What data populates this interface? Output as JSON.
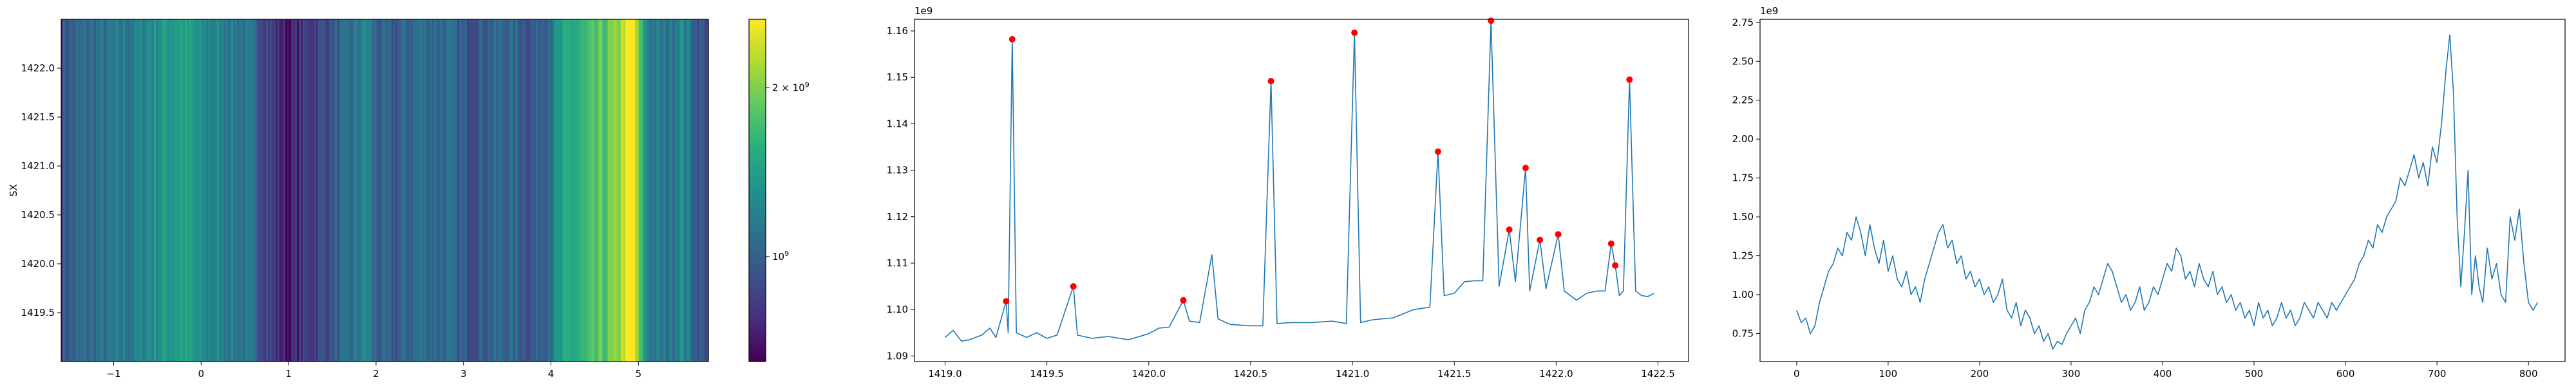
{
  "chart_data": [
    {
      "type": "heatmap",
      "title": "",
      "xlabel": "",
      "ylabel": "SX",
      "xlim": [
        -1.6,
        5.8
      ],
      "ylim": [
        1419.0,
        1422.5
      ],
      "x_ticks": [
        -1,
        0,
        1,
        2,
        3,
        4,
        5
      ],
      "x_tick_labels": [
        "−1",
        "0",
        "1",
        "2",
        "3",
        "4",
        "5"
      ],
      "y_ticks": [
        1419.5,
        1420.0,
        1420.5,
        1421.0,
        1421.5,
        1422.0
      ],
      "y_tick_labels": [
        "1419.5",
        "1420.0",
        "1420.5",
        "1421.0",
        "1421.5",
        "1422.0"
      ],
      "colormap": "viridis",
      "color_scale": "log",
      "colorbar": {
        "vmin": 650000000,
        "vmax": 2650000000,
        "ticks": [
          {
            "value": 1000000000,
            "base": "10",
            "exp": "9",
            "mantissa": ""
          },
          {
            "value": 2000000000,
            "base": "10",
            "exp": "9",
            "mantissa": "2 × "
          }
        ]
      },
      "column_profile": [
        [
          -1.6,
          0.95
        ],
        [
          -1.3,
          1.05
        ],
        [
          -1.0,
          1.1
        ],
        [
          -0.7,
          1.2
        ],
        [
          -0.4,
          1.4
        ],
        [
          -0.2,
          1.45
        ],
        [
          0.0,
          1.25
        ],
        [
          0.3,
          1.2
        ],
        [
          0.6,
          1.05
        ],
        [
          0.85,
          0.8
        ],
        [
          1.0,
          0.7
        ],
        [
          1.15,
          0.8
        ],
        [
          1.4,
          0.9
        ],
        [
          1.7,
          1.05
        ],
        [
          1.9,
          1.25
        ],
        [
          2.0,
          1.0
        ],
        [
          2.2,
          0.95
        ],
        [
          2.5,
          1.1
        ],
        [
          2.8,
          1.05
        ],
        [
          3.0,
          0.95
        ],
        [
          3.2,
          1.0
        ],
        [
          3.5,
          1.05
        ],
        [
          3.8,
          0.95
        ],
        [
          4.0,
          1.15
        ],
        [
          4.2,
          1.5
        ],
        [
          4.4,
          1.6
        ],
        [
          4.6,
          1.8
        ],
        [
          4.75,
          1.95
        ],
        [
          4.85,
          2.5
        ],
        [
          4.95,
          2.6
        ],
        [
          5.0,
          1.8
        ],
        [
          5.1,
          1.2
        ],
        [
          5.3,
          1.1
        ],
        [
          5.5,
          1.3
        ],
        [
          5.65,
          1.0
        ],
        [
          5.8,
          0.9
        ]
      ]
    },
    {
      "type": "line",
      "title": "",
      "xlabel": "",
      "ylabel": "",
      "offset_text": "1e9",
      "xlim": [
        1418.85,
        1422.65
      ],
      "ylim": [
        1.0888,
        1.1625
      ],
      "x_ticks": [
        1419.0,
        1419.5,
        1420.0,
        1420.5,
        1421.0,
        1421.5,
        1422.0,
        1422.5
      ],
      "x_tick_labels": [
        "1419.0",
        "1419.5",
        "1420.0",
        "1420.5",
        "1421.0",
        "1421.5",
        "1422.0",
        "1422.5"
      ],
      "y_ticks": [
        1.09,
        1.1,
        1.11,
        1.12,
        1.13,
        1.14,
        1.15,
        1.16
      ],
      "y_tick_labels": [
        "1.09",
        "1.10",
        "1.11",
        "1.12",
        "1.13",
        "1.14",
        "1.15",
        "1.16"
      ],
      "line_color": "#1f77b4",
      "marker_color": "#ff0000",
      "series_knots": [
        [
          1419.0,
          1.094
        ],
        [
          1419.04,
          1.0955
        ],
        [
          1419.08,
          1.0932
        ],
        [
          1419.12,
          1.0935
        ],
        [
          1419.18,
          1.0945
        ],
        [
          1419.22,
          1.096
        ],
        [
          1419.25,
          1.094
        ],
        [
          1419.3,
          1.1018
        ],
        [
          1419.31,
          1.095
        ],
        [
          1419.33,
          1.1582
        ],
        [
          1419.35,
          1.095
        ],
        [
          1419.4,
          1.094
        ],
        [
          1419.45,
          1.095
        ],
        [
          1419.5,
          1.0938
        ],
        [
          1419.55,
          1.0945
        ],
        [
          1419.63,
          1.105
        ],
        [
          1419.65,
          1.0945
        ],
        [
          1419.72,
          1.0938
        ],
        [
          1419.8,
          1.0942
        ],
        [
          1419.9,
          1.0935
        ],
        [
          1420.0,
          1.0948
        ],
        [
          1420.05,
          1.096
        ],
        [
          1420.1,
          1.0962
        ],
        [
          1420.17,
          1.102
        ],
        [
          1420.2,
          1.0975
        ],
        [
          1420.25,
          1.0972
        ],
        [
          1420.31,
          1.1118
        ],
        [
          1420.34,
          1.098
        ],
        [
          1420.4,
          1.0968
        ],
        [
          1420.5,
          1.0965
        ],
        [
          1420.56,
          1.0965
        ],
        [
          1420.6,
          1.1492
        ],
        [
          1420.63,
          1.097
        ],
        [
          1420.7,
          1.0972
        ],
        [
          1420.8,
          1.0972
        ],
        [
          1420.9,
          1.0975
        ],
        [
          1420.97,
          1.097
        ],
        [
          1421.01,
          1.1596
        ],
        [
          1421.04,
          1.0972
        ],
        [
          1421.1,
          1.0978
        ],
        [
          1421.2,
          1.0982
        ],
        [
          1421.3,
          1.1
        ],
        [
          1421.38,
          1.1005
        ],
        [
          1421.42,
          1.134
        ],
        [
          1421.45,
          1.103
        ],
        [
          1421.5,
          1.1035
        ],
        [
          1421.55,
          1.106
        ],
        [
          1421.6,
          1.1062
        ],
        [
          1421.64,
          1.1062
        ],
        [
          1421.68,
          1.1622
        ],
        [
          1421.72,
          1.105
        ],
        [
          1421.77,
          1.1172
        ],
        [
          1421.8,
          1.106
        ],
        [
          1421.85,
          1.1305
        ],
        [
          1421.87,
          1.104
        ],
        [
          1421.92,
          1.115
        ],
        [
          1421.95,
          1.1045
        ],
        [
          1422.01,
          1.1162
        ],
        [
          1422.04,
          1.104
        ],
        [
          1422.1,
          1.102
        ],
        [
          1422.15,
          1.1035
        ],
        [
          1422.2,
          1.104
        ],
        [
          1422.24,
          1.104
        ],
        [
          1422.27,
          1.1142
        ],
        [
          1422.29,
          1.1095
        ],
        [
          1422.31,
          1.103
        ],
        [
          1422.33,
          1.104
        ],
        [
          1422.36,
          1.1495
        ],
        [
          1422.39,
          1.104
        ],
        [
          1422.42,
          1.103
        ],
        [
          1422.45,
          1.1028
        ],
        [
          1422.48,
          1.1035
        ]
      ],
      "peaks": [
        [
          1419.3,
          1.1018
        ],
        [
          1419.33,
          1.1582
        ],
        [
          1419.63,
          1.105
        ],
        [
          1420.17,
          1.102
        ],
        [
          1420.6,
          1.1492
        ],
        [
          1421.01,
          1.1596
        ],
        [
          1421.42,
          1.134
        ],
        [
          1421.68,
          1.1622
        ],
        [
          1421.77,
          1.1172
        ],
        [
          1421.85,
          1.1305
        ],
        [
          1421.92,
          1.115
        ],
        [
          1422.01,
          1.1162
        ],
        [
          1422.27,
          1.1142
        ],
        [
          1422.29,
          1.1095
        ],
        [
          1422.36,
          1.1495
        ]
      ]
    },
    {
      "type": "line",
      "title": "",
      "xlabel": "",
      "ylabel": "",
      "offset_text": "1e9",
      "xlim": [
        -40,
        840
      ],
      "ylim": [
        0.57,
        2.77
      ],
      "x_ticks": [
        0,
        100,
        200,
        300,
        400,
        500,
        600,
        700,
        800
      ],
      "x_tick_labels": [
        "0",
        "100",
        "200",
        "300",
        "400",
        "500",
        "600",
        "700",
        "800"
      ],
      "y_ticks": [
        0.75,
        1.0,
        1.25,
        1.5,
        1.75,
        2.0,
        2.25,
        2.5,
        2.75
      ],
      "y_tick_labels": [
        "0.75",
        "1.00",
        "1.25",
        "1.50",
        "1.75",
        "2.00",
        "2.25",
        "2.50",
        "2.75"
      ],
      "line_color": "#1f77b4",
      "series_knots": [
        [
          0,
          0.9
        ],
        [
          5,
          0.82
        ],
        [
          10,
          0.85
        ],
        [
          15,
          0.75
        ],
        [
          20,
          0.8
        ],
        [
          25,
          0.95
        ],
        [
          30,
          1.05
        ],
        [
          35,
          1.15
        ],
        [
          40,
          1.2
        ],
        [
          45,
          1.3
        ],
        [
          50,
          1.25
        ],
        [
          55,
          1.4
        ],
        [
          60,
          1.35
        ],
        [
          65,
          1.5
        ],
        [
          70,
          1.4
        ],
        [
          75,
          1.25
        ],
        [
          80,
          1.45
        ],
        [
          85,
          1.3
        ],
        [
          90,
          1.2
        ],
        [
          95,
          1.35
        ],
        [
          100,
          1.15
        ],
        [
          105,
          1.25
        ],
        [
          110,
          1.1
        ],
        [
          115,
          1.05
        ],
        [
          120,
          1.15
        ],
        [
          125,
          1.0
        ],
        [
          130,
          1.05
        ],
        [
          135,
          0.95
        ],
        [
          140,
          1.1
        ],
        [
          145,
          1.2
        ],
        [
          150,
          1.3
        ],
        [
          155,
          1.4
        ],
        [
          160,
          1.45
        ],
        [
          165,
          1.3
        ],
        [
          170,
          1.35
        ],
        [
          175,
          1.2
        ],
        [
          180,
          1.25
        ],
        [
          185,
          1.1
        ],
        [
          190,
          1.15
        ],
        [
          195,
          1.05
        ],
        [
          200,
          1.1
        ],
        [
          205,
          1.0
        ],
        [
          210,
          1.05
        ],
        [
          215,
          0.95
        ],
        [
          220,
          1.0
        ],
        [
          225,
          1.1
        ],
        [
          230,
          0.9
        ],
        [
          235,
          0.85
        ],
        [
          240,
          0.95
        ],
        [
          245,
          0.8
        ],
        [
          250,
          0.9
        ],
        [
          255,
          0.85
        ],
        [
          260,
          0.75
        ],
        [
          265,
          0.8
        ],
        [
          270,
          0.7
        ],
        [
          275,
          0.75
        ],
        [
          280,
          0.65
        ],
        [
          285,
          0.7
        ],
        [
          290,
          0.68
        ],
        [
          295,
          0.75
        ],
        [
          300,
          0.8
        ],
        [
          305,
          0.85
        ],
        [
          310,
          0.75
        ],
        [
          315,
          0.9
        ],
        [
          320,
          0.95
        ],
        [
          325,
          1.05
        ],
        [
          330,
          1.0
        ],
        [
          335,
          1.1
        ],
        [
          340,
          1.2
        ],
        [
          345,
          1.15
        ],
        [
          350,
          1.05
        ],
        [
          355,
          0.95
        ],
        [
          360,
          1.0
        ],
        [
          365,
          0.9
        ],
        [
          370,
          0.95
        ],
        [
          375,
          1.05
        ],
        [
          380,
          0.9
        ],
        [
          385,
          0.95
        ],
        [
          390,
          1.05
        ],
        [
          395,
          1.0
        ],
        [
          400,
          1.1
        ],
        [
          405,
          1.2
        ],
        [
          410,
          1.15
        ],
        [
          415,
          1.3
        ],
        [
          420,
          1.25
        ],
        [
          425,
          1.1
        ],
        [
          430,
          1.15
        ],
        [
          435,
          1.05
        ],
        [
          440,
          1.2
        ],
        [
          445,
          1.1
        ],
        [
          450,
          1.05
        ],
        [
          455,
          1.15
        ],
        [
          460,
          1.0
        ],
        [
          465,
          1.05
        ],
        [
          470,
          0.95
        ],
        [
          475,
          1.0
        ],
        [
          480,
          0.9
        ],
        [
          485,
          0.95
        ],
        [
          490,
          0.85
        ],
        [
          495,
          0.9
        ],
        [
          500,
          0.8
        ],
        [
          505,
          0.95
        ],
        [
          510,
          0.85
        ],
        [
          515,
          0.9
        ],
        [
          520,
          0.8
        ],
        [
          525,
          0.85
        ],
        [
          530,
          0.95
        ],
        [
          535,
          0.85
        ],
        [
          540,
          0.9
        ],
        [
          545,
          0.8
        ],
        [
          550,
          0.85
        ],
        [
          555,
          0.95
        ],
        [
          560,
          0.9
        ],
        [
          565,
          0.85
        ],
        [
          570,
          0.95
        ],
        [
          575,
          0.9
        ],
        [
          580,
          0.85
        ],
        [
          585,
          0.95
        ],
        [
          590,
          0.9
        ],
        [
          595,
          0.95
        ],
        [
          600,
          1.0
        ],
        [
          605,
          1.05
        ],
        [
          610,
          1.1
        ],
        [
          615,
          1.2
        ],
        [
          620,
          1.25
        ],
        [
          625,
          1.35
        ],
        [
          630,
          1.3
        ],
        [
          635,
          1.45
        ],
        [
          640,
          1.4
        ],
        [
          645,
          1.5
        ],
        [
          650,
          1.55
        ],
        [
          655,
          1.6
        ],
        [
          660,
          1.75
        ],
        [
          665,
          1.7
        ],
        [
          670,
          1.8
        ],
        [
          675,
          1.9
        ],
        [
          680,
          1.75
        ],
        [
          685,
          1.85
        ],
        [
          690,
          1.7
        ],
        [
          695,
          1.95
        ],
        [
          700,
          1.85
        ],
        [
          705,
          2.1
        ],
        [
          710,
          2.45
        ],
        [
          714,
          2.67
        ],
        [
          718,
          2.3
        ],
        [
          722,
          1.5
        ],
        [
          726,
          1.05
        ],
        [
          730,
          1.4
        ],
        [
          734,
          1.8
        ],
        [
          738,
          1.0
        ],
        [
          742,
          1.25
        ],
        [
          746,
          1.05
        ],
        [
          750,
          0.95
        ],
        [
          755,
          1.3
        ],
        [
          760,
          1.1
        ],
        [
          765,
          1.2
        ],
        [
          770,
          1.0
        ],
        [
          775,
          0.95
        ],
        [
          780,
          1.5
        ],
        [
          785,
          1.35
        ],
        [
          790,
          1.55
        ],
        [
          795,
          1.2
        ],
        [
          800,
          0.95
        ],
        [
          805,
          0.9
        ],
        [
          810,
          0.95
        ]
      ]
    }
  ]
}
